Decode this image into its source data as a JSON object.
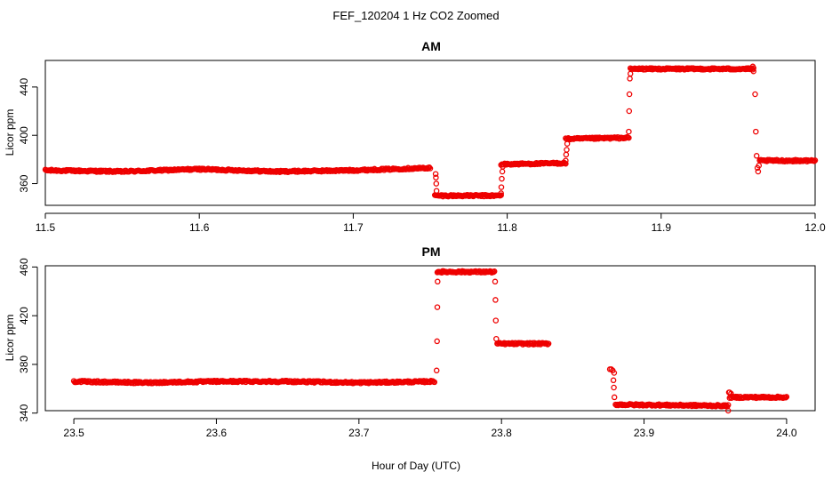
{
  "figure_title": "FEF_120204  1 Hz CO2 Zoomed",
  "xlabel": "Hour of Day (UTC)",
  "colors": {
    "points": "#ee0000"
  },
  "chart_data": [
    {
      "type": "scatter",
      "title": "AM",
      "ylabel": "Licor ppm",
      "xlim": [
        11.5,
        12.0
      ],
      "ylim": [
        342,
        462
      ],
      "xticks": [
        "11.5",
        "11.6",
        "11.7",
        "11.8",
        "11.9",
        "12.0"
      ],
      "yticks": [
        "360",
        "400",
        "440"
      ],
      "marker": "open-circle",
      "series": [
        {
          "segments": [
            {
              "x": [
                11.5,
                11.55,
                11.6,
                11.65,
                11.7,
                11.75
              ],
              "y": [
                371,
                370,
                372,
                370,
                371,
                373
              ]
            },
            {
              "x": [
                11.753,
                11.796
              ],
              "y": [
                350,
                350
              ]
            },
            {
              "x": [
                11.796,
                11.838
              ],
              "y": [
                376,
                377
              ]
            },
            {
              "x": [
                11.838,
                11.879
              ],
              "y": [
                397,
                398
              ]
            },
            {
              "x": [
                11.88,
                11.96
              ],
              "y": [
                455,
                455
              ]
            },
            {
              "x": [
                11.964,
                12.0
              ],
              "y": [
                379,
                379
              ]
            }
          ],
          "points": [
            {
              "x": 11.7535,
              "y": 368
            },
            {
              "x": 11.7537,
              "y": 365
            },
            {
              "x": 11.7539,
              "y": 360
            },
            {
              "x": 11.7541,
              "y": 354
            },
            {
              "x": 11.796,
              "y": 352
            },
            {
              "x": 11.7962,
              "y": 357
            },
            {
              "x": 11.7965,
              "y": 364
            },
            {
              "x": 11.7968,
              "y": 370
            },
            {
              "x": 11.7971,
              "y": 374
            },
            {
              "x": 11.838,
              "y": 379
            },
            {
              "x": 11.8383,
              "y": 384
            },
            {
              "x": 11.8386,
              "y": 388
            },
            {
              "x": 11.839,
              "y": 393
            },
            {
              "x": 11.879,
              "y": 403
            },
            {
              "x": 11.8792,
              "y": 420
            },
            {
              "x": 11.8794,
              "y": 434
            },
            {
              "x": 11.8797,
              "y": 447
            },
            {
              "x": 11.88,
              "y": 451
            },
            {
              "x": 11.9595,
              "y": 457
            },
            {
              "x": 11.96,
              "y": 453
            },
            {
              "x": 11.961,
              "y": 434
            },
            {
              "x": 11.9615,
              "y": 403
            },
            {
              "x": 11.962,
              "y": 383
            },
            {
              "x": 11.9625,
              "y": 373
            },
            {
              "x": 11.963,
              "y": 370
            },
            {
              "x": 11.9635,
              "y": 375
            }
          ]
        }
      ]
    },
    {
      "type": "scatter",
      "title": "PM",
      "ylabel": "Licor ppm",
      "xlim": [
        23.48,
        24.02
      ],
      "ylim": [
        342,
        461
      ],
      "xticks": [
        "23.5",
        "23.6",
        "23.7",
        "23.8",
        "23.9",
        "24.0"
      ],
      "yticks": [
        "340",
        "380",
        "420",
        "460"
      ],
      "marker": "open-circle",
      "series": [
        {
          "segments": [
            {
              "x": [
                23.5,
                23.55,
                23.6,
                23.65,
                23.7,
                23.753
              ],
              "y": [
                366,
                365,
                366,
                366,
                365,
                366
              ]
            },
            {
              "x": [
                23.755,
                23.795
              ],
              "y": [
                456,
                456
              ]
            },
            {
              "x": [
                23.797,
                23.833
              ],
              "y": [
                397,
                397
              ]
            },
            {
              "x": [
                23.88,
                23.959
              ],
              "y": [
                347,
                346
              ]
            },
            {
              "x": [
                23.96,
                24.0
              ],
              "y": [
                353,
                353
              ]
            }
          ],
          "points": [
            {
              "x": 23.876,
              "y": 376
            },
            {
              "x": 23.877,
              "y": 376
            },
            {
              "x": 23.878,
              "y": 375
            },
            {
              "x": 23.879,
              "y": 373
            },
            {
              "x": 23.8785,
              "y": 367
            },
            {
              "x": 23.8788,
              "y": 361
            },
            {
              "x": 23.8792,
              "y": 353
            },
            {
              "x": 23.7545,
              "y": 375
            },
            {
              "x": 23.7548,
              "y": 399
            },
            {
              "x": 23.755,
              "y": 427
            },
            {
              "x": 23.7552,
              "y": 448
            },
            {
              "x": 23.7955,
              "y": 448
            },
            {
              "x": 23.7958,
              "y": 433
            },
            {
              "x": 23.796,
              "y": 416
            },
            {
              "x": 23.7963,
              "y": 401
            },
            {
              "x": 23.959,
              "y": 342
            },
            {
              "x": 23.9595,
              "y": 357
            },
            {
              "x": 23.96,
              "y": 357
            },
            {
              "x": 23.961,
              "y": 356
            }
          ]
        }
      ]
    }
  ]
}
